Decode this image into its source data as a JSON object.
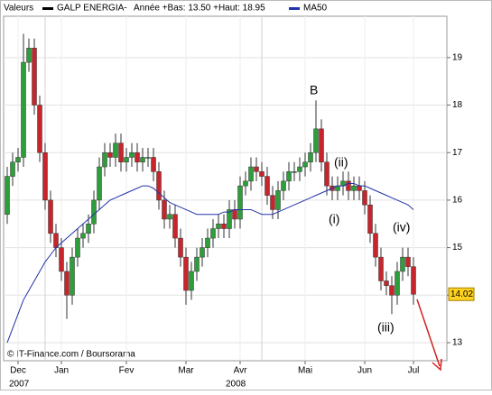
{
  "chart_data": {
    "type": "candlestick",
    "label": "Valeurs",
    "price_name": "GALP ENERGIA-",
    "price_color": "#000000",
    "subtitle": "Année +Bas: 13.50 +Haut: 18.95",
    "source": "© IT-Finance.com / Boursorama",
    "annotations": [
      "B",
      "(ii)",
      "(i)",
      "(iv)",
      "(iii)"
    ],
    "up_color": "#2e9e3a",
    "down_color": "#c8242b",
    "categories": [
      null,
      null,
      "Dec",
      null,
      null,
      null,
      null,
      null,
      null,
      null,
      "Jan",
      null,
      null,
      null,
      null,
      null,
      null,
      null,
      null,
      null,
      null,
      null,
      "Fev",
      null,
      null,
      null,
      null,
      null,
      null,
      null,
      null,
      null,
      null,
      "Mar",
      null,
      null,
      null,
      null,
      null,
      null,
      null,
      null,
      null,
      "Avr",
      null,
      null,
      null,
      null,
      null,
      null,
      null,
      null,
      null,
      null,
      null,
      "Mai",
      null,
      null,
      null,
      null,
      null,
      null,
      null,
      null,
      null,
      null,
      "Jun",
      null,
      null,
      null,
      null,
      null,
      null,
      null,
      null,
      "Jul"
    ],
    "year_labels": [
      {
        "value": 2,
        "label": "2007"
      },
      {
        "value": 42,
        "label": "2008"
      }
    ],
    "open": [
      15.7,
      16.5,
      16.8,
      16.9,
      18.9,
      19.2,
      18.0,
      17.0,
      16.0,
      15.3,
      15.0,
      14.5,
      14.0,
      14.8,
      15.2,
      15.3,
      15.5,
      16.0,
      16.7,
      17.0,
      16.9,
      17.2,
      16.8,
      16.9,
      17.0,
      16.8,
      16.9,
      16.9,
      16.6,
      16.0,
      15.6,
      15.7,
      15.2,
      14.8,
      14.1,
      14.5,
      14.8,
      15.0,
      15.2,
      15.4,
      15.5,
      15.4,
      15.8,
      15.6,
      16.3,
      16.4,
      16.7,
      16.6,
      16.5,
      16.1,
      15.8,
      16.2,
      16.4,
      16.6,
      16.6,
      16.7,
      16.8,
      17.0,
      17.5,
      16.8,
      16.3,
      16.2,
      16.3,
      16.4,
      16.2,
      16.3,
      16.2,
      15.9,
      15.3,
      14.8,
      14.3,
      14.2,
      14.0,
      14.5,
      14.8,
      14.6
    ],
    "high": [
      16.7,
      17.0,
      17.1,
      19.5,
      19.4,
      19.4,
      18.2,
      17.2,
      16.2,
      15.5,
      15.2,
      14.7,
      15.0,
      15.4,
      15.5,
      15.7,
      16.2,
      16.9,
      17.2,
      17.2,
      17.4,
      17.4,
      17.1,
      17.2,
      17.2,
      17.1,
      17.1,
      17.1,
      16.8,
      16.2,
      15.9,
      15.9,
      15.4,
      15.0,
      14.7,
      15.0,
      15.2,
      15.4,
      15.6,
      15.7,
      15.7,
      16.0,
      16.0,
      16.5,
      16.6,
      16.9,
      16.9,
      16.8,
      16.7,
      16.3,
      16.4,
      16.6,
      16.8,
      16.8,
      16.9,
      17.0,
      17.2,
      18.1,
      17.7,
      17.0,
      16.5,
      16.5,
      16.6,
      16.6,
      16.5,
      16.5,
      16.4,
      16.1,
      15.5,
      15.0,
      14.5,
      14.4,
      14.7,
      15.0,
      15.0,
      14.8
    ],
    "low": [
      15.5,
      16.3,
      16.6,
      16.7,
      18.7,
      17.8,
      16.8,
      15.8,
      15.1,
      14.8,
      14.3,
      13.5,
      13.8,
      14.6,
      15.0,
      15.1,
      15.3,
      15.8,
      16.5,
      16.7,
      16.7,
      16.6,
      16.6,
      16.7,
      16.6,
      16.6,
      16.7,
      16.4,
      15.8,
      15.4,
      15.4,
      15.0,
      14.6,
      13.8,
      13.9,
      14.3,
      14.6,
      14.8,
      15.0,
      15.2,
      15.2,
      15.2,
      15.4,
      15.4,
      16.1,
      16.2,
      16.4,
      16.3,
      15.9,
      15.6,
      15.6,
      16.0,
      16.2,
      16.4,
      16.4,
      16.5,
      16.6,
      16.8,
      16.6,
      16.1,
      16.0,
      16.0,
      16.1,
      16.0,
      16.0,
      16.0,
      15.7,
      15.1,
      14.6,
      14.1,
      14.0,
      13.6,
      13.8,
      14.3,
      14.4,
      13.8
    ],
    "close": [
      16.5,
      16.8,
      16.9,
      18.9,
      19.2,
      18.0,
      17.0,
      16.0,
      15.3,
      15.0,
      14.5,
      14.0,
      14.8,
      15.2,
      15.3,
      15.5,
      16.0,
      16.7,
      17.0,
      16.9,
      17.2,
      16.8,
      16.9,
      17.0,
      16.8,
      16.9,
      16.9,
      16.6,
      16.0,
      15.6,
      15.7,
      15.2,
      14.8,
      14.1,
      14.5,
      14.8,
      15.0,
      15.2,
      15.4,
      15.5,
      15.4,
      15.8,
      15.6,
      16.3,
      16.4,
      16.7,
      16.6,
      16.5,
      16.1,
      15.8,
      16.2,
      16.4,
      16.6,
      16.6,
      16.7,
      16.8,
      17.0,
      17.5,
      16.8,
      16.3,
      16.2,
      16.3,
      16.4,
      16.2,
      16.3,
      16.2,
      15.9,
      15.3,
      14.8,
      14.3,
      14.2,
      14.0,
      14.5,
      14.8,
      14.6,
      14.02
    ],
    "series": [
      {
        "name": "MA50",
        "color": "#2233aa",
        "values": [
          13.0,
          13.3,
          13.6,
          13.9,
          14.1,
          14.3,
          14.5,
          14.7,
          14.85,
          15.0,
          15.1,
          15.2,
          15.3,
          15.4,
          15.5,
          15.6,
          15.7,
          15.8,
          15.9,
          16.0,
          16.05,
          16.1,
          16.15,
          16.2,
          16.25,
          16.3,
          16.3,
          16.25,
          16.15,
          16.05,
          15.95,
          15.9,
          15.85,
          15.8,
          15.75,
          15.7,
          15.7,
          15.7,
          15.7,
          15.7,
          15.75,
          15.75,
          15.8,
          15.8,
          15.8,
          15.8,
          15.75,
          15.7,
          15.7,
          15.7,
          15.75,
          15.8,
          15.85,
          15.9,
          15.95,
          16.0,
          16.05,
          16.1,
          16.15,
          16.2,
          16.25,
          16.3,
          16.3,
          16.35,
          16.35,
          16.3,
          16.3,
          16.25,
          16.2,
          16.15,
          16.1,
          16.05,
          16.0,
          15.95,
          15.9,
          15.8
        ]
      }
    ],
    "ylim": [
      12.62,
      19.87
    ],
    "yticks": [
      13,
      14,
      15,
      16,
      17,
      18,
      19
    ],
    "grid": true
  }
}
